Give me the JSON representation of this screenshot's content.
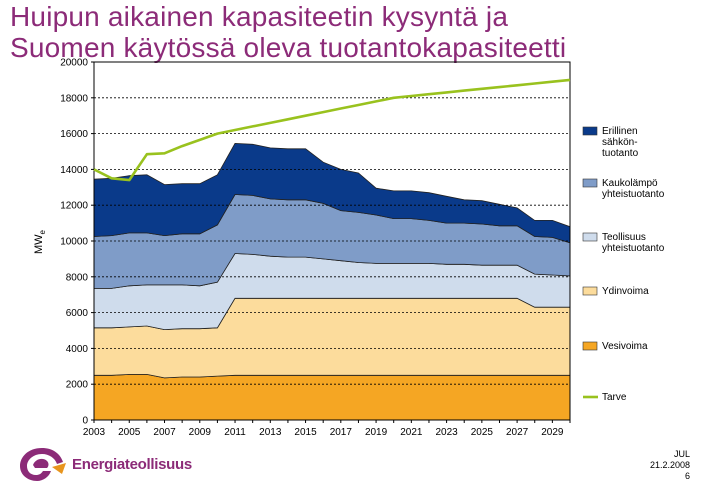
{
  "slide": {
    "title_line1": "Huipun aikainen kapasiteetin kysyntä ja",
    "title_line2": "Suomen käytössä oleva tuotantokapasiteetti"
  },
  "logo": {
    "text": "Energiateollisuus"
  },
  "footer": {
    "code": "JUL",
    "date": "21.2.2008",
    "page": "6"
  },
  "colors": {
    "title": "#8c2b78",
    "erillinen": "#0a3a8a",
    "kaukolampo": "#7f9cc8",
    "teollisuus": "#cfdcec",
    "ydinvoima": "#fcdc9c",
    "vesivoima": "#f5a623",
    "tarve": "#99c21e"
  },
  "chart_data": {
    "type": "area",
    "stacked": true,
    "ylabel": "MWe",
    "ylim": [
      0,
      20000
    ],
    "yticks": [
      0,
      2000,
      4000,
      6000,
      8000,
      10000,
      12000,
      14000,
      16000,
      18000,
      20000
    ],
    "xlim": [
      2003,
      2030
    ],
    "xticks": [
      "2003",
      "2005",
      "2007",
      "2009",
      "2011",
      "2013",
      "2015",
      "2017",
      "2019",
      "2021",
      "2023",
      "2025",
      "2027",
      "2029"
    ],
    "grid": "horizontal dashed",
    "legend_position": "right",
    "x": [
      2003,
      2004,
      2005,
      2006,
      2007,
      2008,
      2009,
      2010,
      2011,
      2012,
      2013,
      2014,
      2015,
      2016,
      2017,
      2018,
      2019,
      2020,
      2021,
      2022,
      2023,
      2024,
      2025,
      2026,
      2027,
      2028,
      2029,
      2030
    ],
    "series": [
      {
        "name": "Vesivoima",
        "values": [
          2500,
          2500,
          2550,
          2550,
          2350,
          2400,
          2400,
          2450,
          2500,
          2500,
          2500,
          2500,
          2500,
          2500,
          2500,
          2500,
          2500,
          2500,
          2500,
          2500,
          2500,
          2500,
          2500,
          2500,
          2500,
          2500,
          2500,
          2500
        ]
      },
      {
        "name": "Ydinvoima",
        "values": [
          2650,
          2650,
          2650,
          2700,
          2700,
          2700,
          2700,
          2700,
          4300,
          4300,
          4300,
          4300,
          4300,
          4300,
          4300,
          4300,
          4300,
          4300,
          4300,
          4300,
          4300,
          4300,
          4300,
          4300,
          4300,
          3800,
          3800,
          3800
        ]
      },
      {
        "name": "Teollisuus yhteistuotanto",
        "values": [
          2200,
          2200,
          2300,
          2300,
          2500,
          2450,
          2400,
          2550,
          2500,
          2450,
          2350,
          2300,
          2300,
          2200,
          2100,
          2000,
          1950,
          1950,
          1950,
          1950,
          1900,
          1900,
          1850,
          1850,
          1850,
          1850,
          1800,
          1750
        ]
      },
      {
        "name": "Kaukolämpö yhteistuotanto",
        "values": [
          2900,
          2950,
          2950,
          2900,
          2750,
          2850,
          2900,
          3200,
          3300,
          3300,
          3200,
          3200,
          3200,
          3100,
          2800,
          2800,
          2700,
          2500,
          2500,
          2400,
          2300,
          2300,
          2300,
          2200,
          2200,
          2100,
          2100,
          1850
        ]
      },
      {
        "name": "Erillinen sähkön-tuotanto",
        "values": [
          3200,
          3200,
          3200,
          3250,
          2850,
          2800,
          2800,
          2800,
          2850,
          2850,
          2850,
          2850,
          2850,
          2300,
          2300,
          2200,
          1500,
          1550,
          1550,
          1550,
          1500,
          1300,
          1300,
          1200,
          1000,
          900,
          950,
          900
        ]
      },
      {
        "name": "Tarve",
        "type": "line",
        "values": [
          14000,
          13500,
          13400,
          14850,
          14900,
          15300,
          15650,
          16000,
          16200,
          16400,
          16600,
          16800,
          17000,
          17200,
          17400,
          17600,
          17800,
          18000,
          18100,
          18200,
          18300,
          18400,
          18500,
          18600,
          18700,
          18800,
          18900,
          19000
        ]
      }
    ],
    "legend": [
      {
        "key": "erillinen",
        "label": [
          "Erillinen",
          "sähkön-",
          "tuotanto"
        ]
      },
      {
        "key": "kaukolampo",
        "label": [
          "Kaukolämpö",
          "yhteistuotanto"
        ]
      },
      {
        "key": "teollisuus",
        "label": [
          "Teollisuus",
          "yhteistuotanto"
        ]
      },
      {
        "key": "ydinvoima",
        "label": [
          "Ydinvoima"
        ]
      },
      {
        "key": "vesivoima",
        "label": [
          "Vesivoima"
        ]
      },
      {
        "key": "tarve",
        "label": [
          "Tarve"
        ],
        "line": true
      }
    ]
  }
}
